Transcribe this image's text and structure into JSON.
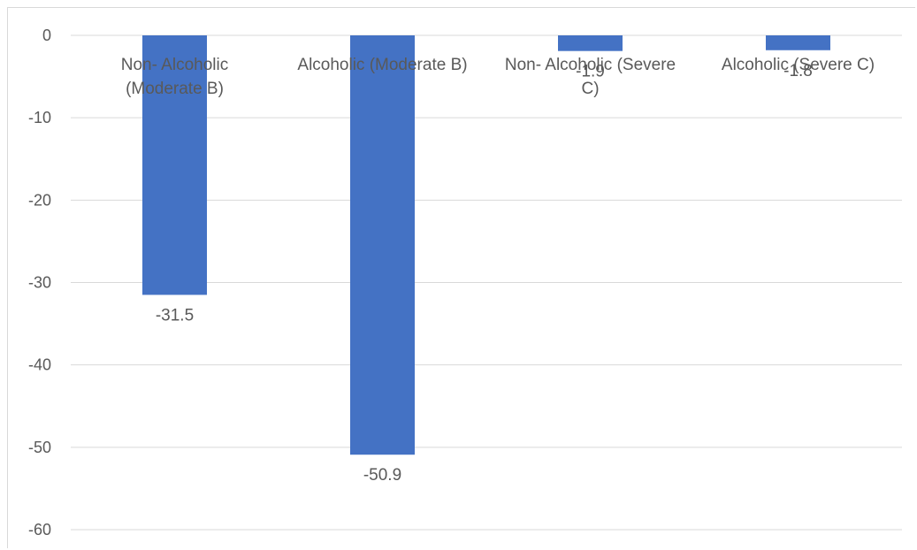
{
  "chart_data": {
    "type": "bar",
    "title": "",
    "xlabel": "",
    "ylabel": "",
    "categories": [
      [
        "Non- Alcoholic",
        "(Moderate B)"
      ],
      [
        "Alcoholic (Moderate B)"
      ],
      [
        "Non- Alcoholic (Severe",
        "C)"
      ],
      [
        "Alcoholic (Severe C)"
      ]
    ],
    "values": [
      -31.5,
      -50.9,
      -1.9,
      -1.8
    ],
    "data_labels": [
      "-31.5",
      "-50.9",
      "-1.9",
      "-1.8"
    ],
    "ylim": [
      -60,
      0
    ],
    "yticks": [
      0,
      -10,
      -20,
      -30,
      -40,
      -50,
      -60
    ],
    "ytick_labels": [
      "0",
      "-10",
      "-20",
      "-30",
      "-40",
      "-50",
      "-60"
    ],
    "grid": true,
    "legend": "none",
    "colors": {
      "bar": "#4472c4",
      "grid": "#d9d9d9",
      "text": "#595959"
    }
  }
}
